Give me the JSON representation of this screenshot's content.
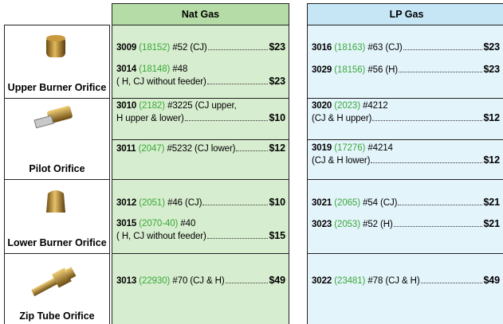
{
  "header": {
    "nat": "Nat Gas",
    "lp": "LP Gas"
  },
  "rows": [
    {
      "label": "Upper Burner Orifice",
      "nat": [
        {
          "part": "3009",
          "alt": "(18152)",
          "desc": "#52 (CJ)",
          "price": "$23"
        },
        {
          "part": "3014",
          "alt": "(18148)",
          "desc": "#48",
          "desc2": "( H, CJ without feeder)",
          "price": "$23"
        }
      ],
      "lp": [
        {
          "part": "3016",
          "alt": "(18163)",
          "desc": "#63 (CJ)",
          "price": "$23"
        },
        {
          "part": "3029",
          "alt": "(18156)",
          "desc": "#56 (H)",
          "price": "$23"
        }
      ]
    },
    {
      "label": "Pilot Orifice",
      "nat": [
        {
          "part": "3010",
          "alt": "(2182)",
          "desc": "#3225 (CJ upper,",
          "desc2": "H upper & lower)",
          "price": "$10"
        },
        {
          "part": "3011",
          "alt": "(2047)",
          "desc": "#5232 (CJ lower)",
          "price": "$12"
        }
      ],
      "lp": [
        {
          "part": "3020",
          "alt": "(2023)",
          "desc": "#4212",
          "desc2": "(CJ & H upper).",
          "price": "$12"
        },
        {
          "part": "3019",
          "alt": "(17276)",
          "desc": "#4214",
          "desc2": "(CJ & H lower)",
          "price": "$12"
        }
      ]
    },
    {
      "label": "Lower Burner Orifice",
      "nat": [
        {
          "part": "3012",
          "alt": "(2051)",
          "desc": "#46 (CJ)",
          "price": "$10"
        },
        {
          "part": "3015",
          "alt": "(2070-40)",
          "desc": "#40",
          "desc2": "( H, CJ without feeder)",
          "price": "$15"
        }
      ],
      "lp": [
        {
          "part": "3021",
          "alt": "(2065)",
          "desc": "#54 (CJ)",
          "price": "$21"
        },
        {
          "part": "3023",
          "alt": "(2053)",
          "desc": "#52 (H)",
          "price": "$21"
        }
      ]
    },
    {
      "label": "Zip Tube Orifice",
      "nat": [
        {
          "part": "3013",
          "alt": "(22930)",
          "desc": "#70 (CJ & H)",
          "price": "$49"
        }
      ],
      "lp": [
        {
          "part": "3022",
          "alt": "(23481)",
          "desc": "#78 (CJ & H)",
          "price": "$49"
        }
      ]
    }
  ]
}
